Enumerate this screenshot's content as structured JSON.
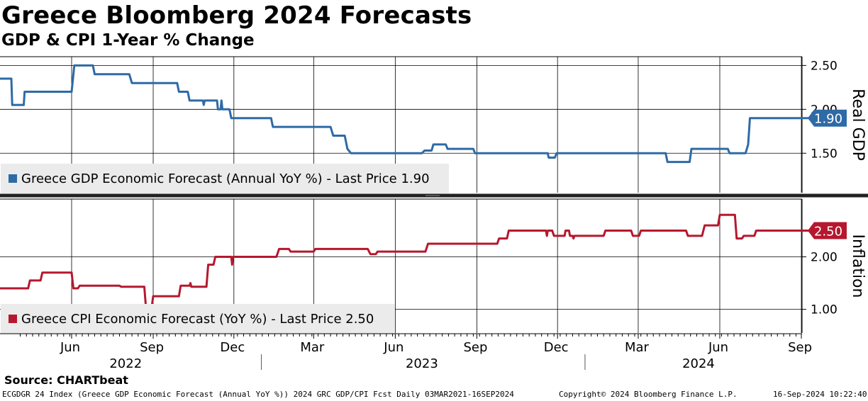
{
  "header": {
    "title": "Greece Bloomberg 2024 Forecasts",
    "subtitle": "GDP & CPI 1-Year % Change"
  },
  "footer": {
    "source": "Source: CHARTbeat",
    "ticker_info": "ECGDGR 24 Index (Greece GDP Economic Forecast (Annual YoY %)) 2024 GRC GDP/CPI Fcst  Daily 03MAR2021-16SEP2024",
    "copyright": "Copyright© 2024 Bloomberg Finance L.P.",
    "timestamp": "16-Sep-2024 10:22:40"
  },
  "colors": {
    "gdp": "#2e6aa6",
    "cpi": "#b5182e",
    "grid": "#000000",
    "legend_bg": "#ebebeb",
    "divider": "#222222"
  },
  "chart_data": [
    {
      "type": "line",
      "panel": "top",
      "ylabel": "Real GDP",
      "ylim": [
        1.05,
        2.6
      ],
      "y_ticks": [
        1.5,
        2.0,
        2.5
      ],
      "y_tick_labels": [
        "1.50",
        "2.00",
        "2.50"
      ],
      "last_value_label": "1.90",
      "legend": "Greece GDP Economic Forecast (Annual YoY %) - Last Price 1.90",
      "legend_position": "bottom-left",
      "grid": true,
      "series": [
        {
          "name": "Greece GDP Economic Forecast (Annual YoY %)",
          "points": [
            [
              "2022-03-01",
              2.35
            ],
            [
              "2022-03-25",
              2.35
            ],
            [
              "2022-03-26",
              2.05
            ],
            [
              "2022-04-08",
              2.05
            ],
            [
              "2022-04-09",
              2.2
            ],
            [
              "2022-06-01",
              2.2
            ],
            [
              "2022-06-04",
              2.5
            ],
            [
              "2022-06-25",
              2.5
            ],
            [
              "2022-06-27",
              2.4
            ],
            [
              "2022-08-05",
              2.4
            ],
            [
              "2022-08-08",
              2.3
            ],
            [
              "2022-09-28",
              2.3
            ],
            [
              "2022-09-30",
              2.2
            ],
            [
              "2022-10-10",
              2.2
            ],
            [
              "2022-10-12",
              2.1
            ],
            [
              "2022-10-27",
              2.1
            ],
            [
              "2022-10-28",
              2.05
            ],
            [
              "2022-10-29",
              2.1
            ],
            [
              "2022-11-12",
              2.1
            ],
            [
              "2022-11-13",
              2.0
            ],
            [
              "2022-11-16",
              2.0
            ],
            [
              "2022-11-17",
              2.1
            ],
            [
              "2022-11-18",
              2.0
            ],
            [
              "2022-11-26",
              2.0
            ],
            [
              "2022-11-28",
              1.9
            ],
            [
              "2023-01-12",
              1.9
            ],
            [
              "2023-01-14",
              1.8
            ],
            [
              "2023-03-20",
              1.8
            ],
            [
              "2023-03-23",
              1.7
            ],
            [
              "2023-04-05",
              1.7
            ],
            [
              "2023-04-08",
              1.55
            ],
            [
              "2023-04-12",
              1.5
            ],
            [
              "2023-07-01",
              1.5
            ],
            [
              "2023-07-04",
              1.53
            ],
            [
              "2023-07-12",
              1.53
            ],
            [
              "2023-07-14",
              1.6
            ],
            [
              "2023-07-28",
              1.6
            ],
            [
              "2023-07-30",
              1.55
            ],
            [
              "2023-08-28",
              1.55
            ],
            [
              "2023-08-30",
              1.5
            ],
            [
              "2023-11-20",
              1.5
            ],
            [
              "2023-11-21",
              1.45
            ],
            [
              "2023-11-28",
              1.45
            ],
            [
              "2023-11-30",
              1.5
            ],
            [
              "2024-04-01",
              1.5
            ],
            [
              "2024-04-03",
              1.4
            ],
            [
              "2024-04-28",
              1.4
            ],
            [
              "2024-04-30",
              1.55
            ],
            [
              "2024-06-10",
              1.55
            ],
            [
              "2024-06-12",
              1.5
            ],
            [
              "2024-06-30",
              1.5
            ],
            [
              "2024-07-03",
              1.6
            ],
            [
              "2024-07-05",
              1.9
            ],
            [
              "2024-09-16",
              1.9
            ]
          ]
        }
      ]
    },
    {
      "type": "line",
      "panel": "bottom",
      "ylabel": "Inflation",
      "ylim": [
        0.55,
        3.1
      ],
      "y_ticks": [
        1.0,
        2.0
      ],
      "y_tick_labels": [
        "1.00",
        "2.00"
      ],
      "last_value_label": "2.50",
      "legend": "Greece CPI Economic Forecast (YoY %) - Last Price 2.50",
      "legend_position": "bottom-left",
      "grid": true,
      "series": [
        {
          "name": "Greece CPI Economic Forecast (YoY %)",
          "points": [
            [
              "2022-03-01",
              1.4
            ],
            [
              "2022-04-13",
              1.4
            ],
            [
              "2022-04-15",
              1.55
            ],
            [
              "2022-04-27",
              1.55
            ],
            [
              "2022-04-29",
              1.7
            ],
            [
              "2022-06-01",
              1.7
            ],
            [
              "2022-06-03",
              1.4
            ],
            [
              "2022-06-08",
              1.4
            ],
            [
              "2022-06-10",
              1.45
            ],
            [
              "2022-07-25",
              1.45
            ],
            [
              "2022-07-27",
              1.43
            ],
            [
              "2022-08-22",
              1.43
            ],
            [
              "2022-08-24",
              1.0
            ],
            [
              "2022-08-30",
              1.0
            ],
            [
              "2022-09-01",
              1.25
            ],
            [
              "2022-09-30",
              1.25
            ],
            [
              "2022-10-02",
              1.45
            ],
            [
              "2022-10-12",
              1.45
            ],
            [
              "2022-10-13",
              1.5
            ],
            [
              "2022-10-14",
              1.43
            ],
            [
              "2022-10-31",
              1.43
            ],
            [
              "2022-11-02",
              1.85
            ],
            [
              "2022-11-08",
              1.85
            ],
            [
              "2022-11-10",
              2.0
            ],
            [
              "2022-11-28",
              2.0
            ],
            [
              "2022-11-29",
              1.85
            ],
            [
              "2022-11-30",
              2.0
            ],
            [
              "2023-01-18",
              2.0
            ],
            [
              "2023-01-21",
              2.15
            ],
            [
              "2023-02-01",
              2.15
            ],
            [
              "2023-02-03",
              2.1
            ],
            [
              "2023-03-01",
              2.1
            ],
            [
              "2023-03-03",
              2.15
            ],
            [
              "2023-05-01",
              2.15
            ],
            [
              "2023-05-04",
              2.05
            ],
            [
              "2023-05-10",
              2.05
            ],
            [
              "2023-05-12",
              2.1
            ],
            [
              "2023-07-05",
              2.1
            ],
            [
              "2023-07-08",
              2.25
            ],
            [
              "2023-09-24",
              2.25
            ],
            [
              "2023-09-26",
              2.35
            ],
            [
              "2023-10-05",
              2.35
            ],
            [
              "2023-10-07",
              2.5
            ],
            [
              "2023-11-18",
              2.5
            ],
            [
              "2023-11-19",
              2.4
            ],
            [
              "2023-11-20",
              2.5
            ],
            [
              "2023-11-25",
              2.5
            ],
            [
              "2023-11-27",
              2.4
            ],
            [
              "2023-12-09",
              2.4
            ],
            [
              "2023-12-10",
              2.5
            ],
            [
              "2023-12-14",
              2.5
            ],
            [
              "2023-12-15",
              2.4
            ],
            [
              "2023-12-18",
              2.4
            ],
            [
              "2023-12-19",
              2.35
            ],
            [
              "2023-12-20",
              2.4
            ],
            [
              "2024-01-22",
              2.4
            ],
            [
              "2024-01-24",
              2.5
            ],
            [
              "2024-02-22",
              2.5
            ],
            [
              "2024-02-24",
              2.4
            ],
            [
              "2024-03-02",
              2.4
            ],
            [
              "2024-03-04",
              2.5
            ],
            [
              "2024-04-24",
              2.5
            ],
            [
              "2024-04-26",
              2.4
            ],
            [
              "2024-05-12",
              2.4
            ],
            [
              "2024-05-15",
              2.6
            ],
            [
              "2024-05-30",
              2.6
            ],
            [
              "2024-06-01",
              2.8
            ],
            [
              "2024-06-18",
              2.8
            ],
            [
              "2024-06-20",
              2.35
            ],
            [
              "2024-06-26",
              2.35
            ],
            [
              "2024-06-28",
              2.4
            ],
            [
              "2024-07-10",
              2.4
            ],
            [
              "2024-07-12",
              2.5
            ],
            [
              "2024-09-16",
              2.5
            ]
          ]
        }
      ]
    }
  ],
  "x_axis": {
    "month_ticks": [
      {
        "date": "2022-06-01",
        "label": "Jun"
      },
      {
        "date": "2022-09-01",
        "label": "Sep"
      },
      {
        "date": "2022-12-01",
        "label": "Dec"
      },
      {
        "date": "2023-03-01",
        "label": "Mar"
      },
      {
        "date": "2023-06-01",
        "label": "Jun"
      },
      {
        "date": "2023-09-01",
        "label": "Sep"
      },
      {
        "date": "2023-12-01",
        "label": "Dec"
      },
      {
        "date": "2024-03-01",
        "label": "Mar"
      },
      {
        "date": "2024-06-01",
        "label": "Jun"
      },
      {
        "date": "2024-09-01",
        "label": "Sep"
      }
    ],
    "years": [
      {
        "label": "2022",
        "center": "2022-08-01"
      },
      {
        "label": "2023",
        "center": "2023-07-01"
      },
      {
        "label": "2024",
        "center": "2024-05-08"
      }
    ],
    "year_boundaries": [
      "2023-01-01",
      "2024-01-01"
    ]
  }
}
